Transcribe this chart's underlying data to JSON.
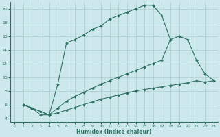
{
  "xlabel": "Humidex (Indice chaleur)",
  "bg_color": "#cce8ec",
  "grid_color": "#aacccc",
  "line_color": "#2d7060",
  "xlim": [
    -0.5,
    23.5
  ],
  "ylim": [
    3.5,
    21.0
  ],
  "xticks": [
    0,
    1,
    2,
    3,
    4,
    5,
    6,
    7,
    8,
    9,
    10,
    11,
    12,
    13,
    14,
    15,
    16,
    17,
    18,
    19,
    20,
    21,
    22,
    23
  ],
  "yticks": [
    4,
    6,
    8,
    10,
    12,
    14,
    16,
    18,
    20
  ],
  "curve1_x": [
    1,
    2,
    3,
    4,
    5,
    6,
    7,
    8,
    9,
    10,
    11,
    12,
    13,
    14,
    15,
    16,
    17,
    18,
    19,
    20,
    21,
    22,
    23
  ],
  "curve1_y": [
    6,
    5.5,
    5,
    4.5,
    4.8,
    5.2,
    5.6,
    6.0,
    6.4,
    6.8,
    7.1,
    7.4,
    7.7,
    8.0,
    8.2,
    8.4,
    8.6,
    8.8,
    9.0,
    9.2,
    9.5,
    9.3,
    9.5
  ],
  "curve2_x": [
    1,
    2,
    3,
    4,
    5,
    6,
    7,
    8,
    9,
    10,
    11,
    12,
    13,
    14,
    15,
    16,
    17,
    18,
    19,
    20,
    21,
    22,
    23
  ],
  "curve2_y": [
    6,
    5.5,
    5,
    4.5,
    5.5,
    6.5,
    7.2,
    7.8,
    8.4,
    9.0,
    9.5,
    10.0,
    10.5,
    11.0,
    11.5,
    12.0,
    12.5,
    15.5,
    16.0,
    15.5,
    12.5,
    10.5,
    9.5
  ],
  "curve3_x": [
    1,
    2,
    3,
    4,
    5,
    6,
    7,
    8,
    9,
    10,
    11,
    12,
    13,
    14,
    15,
    16,
    17,
    18
  ],
  "curve3_y": [
    6.0,
    5.5,
    4.5,
    4.5,
    9.0,
    15.0,
    15.5,
    16.2,
    17.0,
    17.5,
    18.5,
    19.0,
    19.5,
    20.0,
    20.5,
    20.5,
    19.0,
    15.5
  ]
}
